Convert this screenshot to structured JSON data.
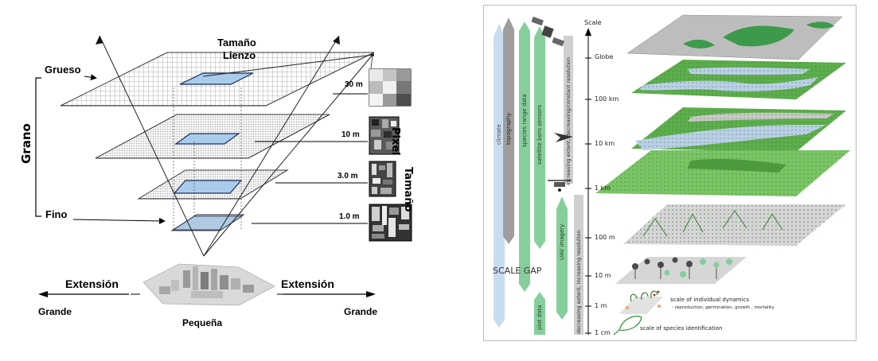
{
  "left": {
    "grueso": "Grueso",
    "grano": "Grano",
    "fino": "Fino",
    "tamano_lienzo_1": "Tamaño",
    "tamano_lienzo_2": "Lienzo",
    "tamano_pixel_1": "Tamaño",
    "tamano_pixel_2": "Pixel",
    "res_30": "30 m",
    "res_10": "10 m",
    "res_3": "3.0 m",
    "res_1": "1.0 m",
    "extension_left": "Extensión",
    "extension_right": "Extensión",
    "grande_left": "Grande",
    "grande_right": "Grande",
    "pequena": "Pequeña"
  },
  "right": {
    "scale_label": "Scale",
    "globe": "Globe",
    "km100": "100 km",
    "km10": "10 km",
    "km1": "1 km",
    "m100": "100 m",
    "m10": "10 m",
    "m1": "1 m",
    "cm1": "1 cm",
    "climate": "climate",
    "topography": "topography",
    "species_range": "species range data",
    "satellite": "satellite born sensors",
    "uav": "UAV imagery",
    "plot": "plot data",
    "increasing": "increasing extent, decreasing/constant resolution",
    "decreasing": "decreasing extent, increasing resolution",
    "scale_gap": "SCALE GAP",
    "individual_title": "scale of individual dynamics",
    "individual_sub": "- reproduction, germination, growth , mortality",
    "species_id": "scale of species identification"
  },
  "colors": {
    "climate_arrow": "#c9ddf0",
    "topography_arrow": "#9e9e9e",
    "green_arrow": "#86cf9c",
    "vegetation": "#5cae4b",
    "water": "#b9cfe6"
  }
}
